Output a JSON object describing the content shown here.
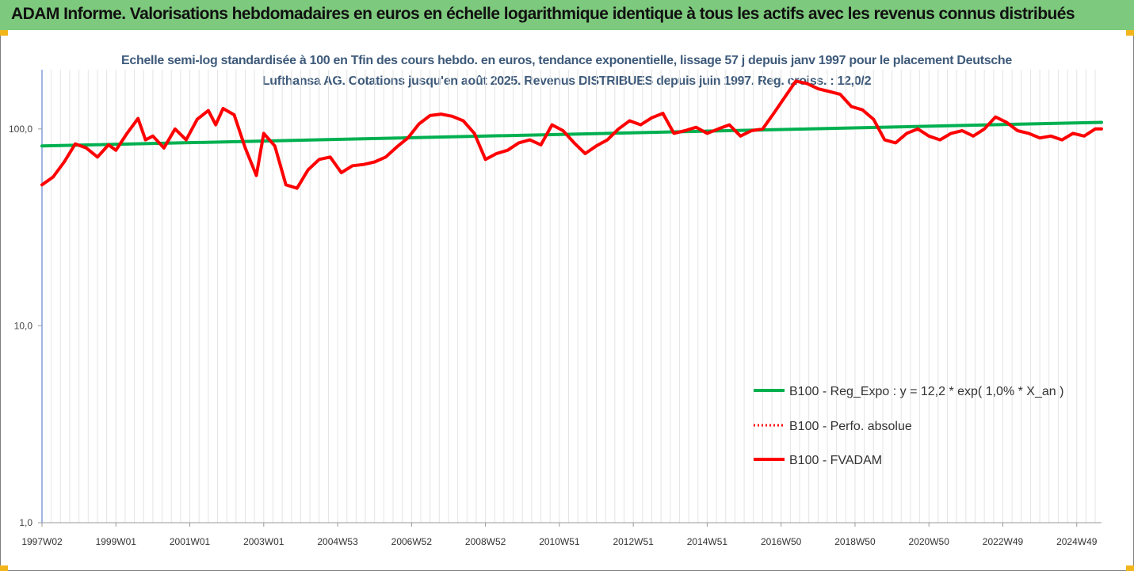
{
  "header": {
    "title": "ADAM Informe. Valorisations hebdomadaires en euros en échelle logarithmique identique à tous les actifs avec les revenus connus distribués"
  },
  "colors": {
    "header_bg": "#7dc97d",
    "trend": "#00b050",
    "series": "#ff0000",
    "subtitle": "#3e5a7a"
  },
  "chart_data": {
    "type": "line",
    "title": "Echelle semi-log standardisée à 100 en Tfin des cours hebdo. en euros, tendance exponentielle, lissage 57 j depuis janv 1997 pour le placement Deutsche Lufthansa AG. Cotations jusqu'en août 2025. Revenus DISTRIBUES depuis juin 1997. Reg. croiss. : 12,0/2",
    "y_scale": "log",
    "ylim": [
      1,
      200
    ],
    "y_ticks": [
      "1,0",
      "10,0",
      "100,0"
    ],
    "y_tick_values": [
      1,
      10,
      100
    ],
    "x_ticks": [
      "1997W02",
      "1999W01",
      "2001W01",
      "2003W01",
      "2004W53",
      "2006W52",
      "2008W52",
      "2010W51",
      "2012W51",
      "2014W51",
      "2016W50",
      "2018W50",
      "2020W50",
      "2022W49",
      "2024W49"
    ],
    "x_tick_years": [
      1997.0,
      1999.0,
      2001.0,
      2003.0,
      2005.0,
      2007.0,
      2009.0,
      2011.0,
      2013.0,
      2015.0,
      2017.0,
      2019.0,
      2021.0,
      2023.0,
      2025.0
    ],
    "xlim": [
      1997.0,
      2025.67
    ],
    "legend_position": "lower-right",
    "grid": "vertical",
    "series": [
      {
        "name": "B100 - Reg_Expo : y = 12,2 * exp( 1,0% *  X_an )",
        "style": "solid-thick",
        "color": "#00b050",
        "x": [
          1997.0,
          2025.67
        ],
        "y": [
          82,
          108
        ]
      },
      {
        "name": "B100 - Perfo. absolue",
        "style": "dotted",
        "color": "#ff0000",
        "x": [],
        "y": []
      },
      {
        "name": "B100 - FVADAM",
        "style": "solid-thick",
        "color": "#ff0000",
        "x": [
          1997.0,
          1997.3,
          1997.6,
          1997.9,
          1998.2,
          1998.5,
          1998.8,
          1999.0,
          1999.3,
          1999.6,
          1999.8,
          2000.0,
          2000.3,
          2000.6,
          2000.9,
          2001.2,
          2001.5,
          2001.7,
          2001.9,
          2002.2,
          2002.5,
          2002.8,
          2003.0,
          2003.3,
          2003.6,
          2003.9,
          2004.2,
          2004.5,
          2004.8,
          2005.1,
          2005.4,
          2005.7,
          2006.0,
          2006.3,
          2006.6,
          2006.9,
          2007.2,
          2007.5,
          2007.8,
          2008.1,
          2008.4,
          2008.7,
          2009.0,
          2009.3,
          2009.6,
          2009.9,
          2010.2,
          2010.5,
          2010.8,
          2011.1,
          2011.4,
          2011.7,
          2012.0,
          2012.3,
          2012.6,
          2012.9,
          2013.2,
          2013.5,
          2013.8,
          2014.1,
          2014.4,
          2014.7,
          2015.0,
          2015.3,
          2015.6,
          2015.9,
          2016.2,
          2016.5,
          2016.8,
          2017.1,
          2017.4,
          2017.7,
          2018.0,
          2018.3,
          2018.6,
          2018.9,
          2019.2,
          2019.5,
          2019.8,
          2020.1,
          2020.4,
          2020.7,
          2021.0,
          2021.3,
          2021.6,
          2021.9,
          2022.2,
          2022.5,
          2022.8,
          2023.1,
          2023.4,
          2023.7,
          2024.0,
          2024.3,
          2024.6,
          2024.9,
          2025.2,
          2025.5,
          2025.67
        ],
        "y": [
          52,
          57,
          68,
          84,
          80,
          72,
          83,
          78,
          95,
          113,
          88,
          92,
          80,
          100,
          88,
          112,
          124,
          105,
          127,
          118,
          80,
          58,
          95,
          82,
          52,
          50,
          62,
          70,
          72,
          60,
          65,
          66,
          68,
          72,
          81,
          90,
          106,
          117,
          119,
          116,
          110,
          95,
          70,
          75,
          78,
          85,
          88,
          83,
          105,
          98,
          85,
          75,
          82,
          88,
          100,
          110,
          105,
          114,
          120,
          95,
          98,
          102,
          95,
          100,
          105,
          92,
          98,
          100,
          120,
          145,
          175,
          170,
          160,
          155,
          150,
          130,
          125,
          112,
          88,
          85,
          95,
          100,
          92,
          88,
          95,
          98,
          92,
          100,
          115,
          108,
          98,
          95,
          90,
          92,
          88,
          95,
          92,
          100,
          100
        ]
      }
    ]
  }
}
